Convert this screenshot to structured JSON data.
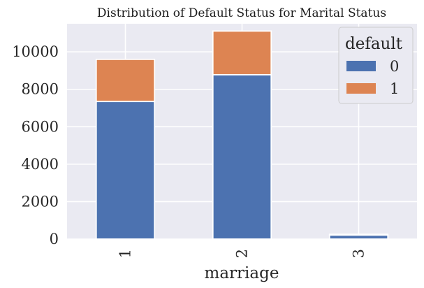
{
  "chart_data": {
    "type": "bar",
    "stacked": true,
    "title": "Distribution of Default Status for Marital Status",
    "xlabel": "marriage",
    "ylabel": "",
    "categories": [
      "1",
      "2",
      "3"
    ],
    "series": [
      {
        "name": "0",
        "values": [
          7350,
          8780,
          215
        ],
        "color": "#4c72b0"
      },
      {
        "name": "1",
        "values": [
          2250,
          2330,
          40
        ],
        "color": "#dd8452"
      }
    ],
    "ylim": [
      0,
      11500
    ],
    "yticks": [
      "0",
      "2000",
      "4000",
      "6000",
      "8000",
      "10000"
    ],
    "legend": {
      "title": "default",
      "placement": "top-right"
    },
    "grid": true,
    "background": "#eaeaf2"
  }
}
